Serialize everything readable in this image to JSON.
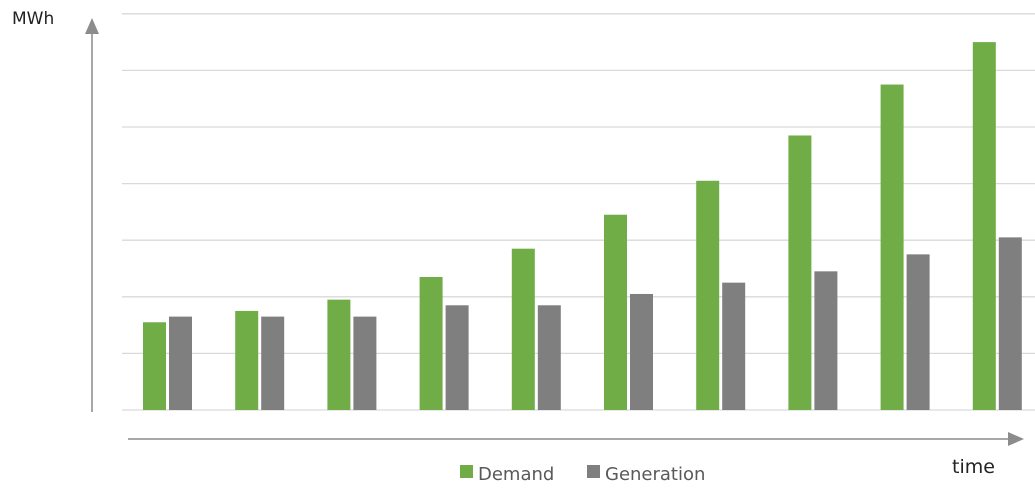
{
  "chart_data": {
    "type": "bar",
    "ylabel": "MWh",
    "xlabel": "time",
    "ylim": [
      0,
      7
    ],
    "grid": true,
    "legend_position": "bottom",
    "categories": [
      "",
      "",
      "",
      "",
      "",
      "",
      "",
      "",
      "",
      ""
    ],
    "series": [
      {
        "name": "Demand",
        "color": "#70ad47",
        "values": [
          1.55,
          1.75,
          1.95,
          2.35,
          2.85,
          3.45,
          4.05,
          4.85,
          5.75,
          6.5
        ]
      },
      {
        "name": "Generation",
        "color": "#7f7f7f",
        "values": [
          1.65,
          1.65,
          1.65,
          1.85,
          1.85,
          2.05,
          2.25,
          2.45,
          2.75,
          3.05
        ]
      }
    ]
  }
}
